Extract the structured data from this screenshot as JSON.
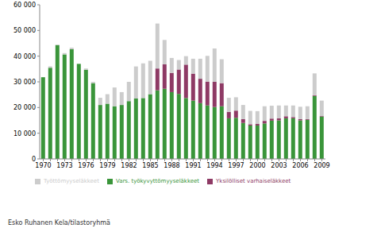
{
  "chart_data": {
    "type": "bar",
    "stacked": true,
    "grid": false,
    "legend": "bottom left",
    "annotation": "Esko Ruhanen Kela/tilastoryhmä",
    "categories": [
      "1970",
      null,
      null,
      "1973",
      null,
      null,
      "1976",
      null,
      null,
      "1979",
      null,
      null,
      "1982",
      null,
      null,
      "1985",
      null,
      null,
      "1988",
      null,
      null,
      "1991",
      null,
      null,
      "1994",
      null,
      null,
      "1997",
      null,
      null,
      "2000",
      null,
      null,
      "2003",
      null,
      null,
      "2006",
      null,
      null,
      "2009"
    ],
    "ylim": [
      0,
      60000
    ],
    "yticks": [
      0,
      {
        "value": 10000,
        "label": "10 000"
      },
      {
        "value": 20000,
        "label": "20 000"
      },
      {
        "value": 30000,
        "label": "30 000"
      },
      {
        "value": 40000,
        "label": "40 000"
      },
      {
        "value": 50000,
        "label": "50 000"
      },
      {
        "value": 60000,
        "label": "60 000"
      }
    ],
    "series": [
      {
        "name": "Vars. työkyvyttömyyseläkkeet",
        "color": "#3a953a",
        "values": [
          31800,
          35500,
          44300,
          40700,
          42700,
          37000,
          34700,
          29500,
          21000,
          21500,
          20500,
          21000,
          22500,
          23500,
          23700,
          25200,
          26700,
          27300,
          26000,
          25300,
          23700,
          22700,
          21700,
          20800,
          20200,
          20500,
          15800,
          16000,
          14000,
          13000,
          13000,
          13800,
          14900,
          15000,
          15800,
          15800,
          15000,
          15200,
          24500,
          16500
        ]
      },
      {
        "name": "Yksilölliset varhaiseläkkeet",
        "color": "#8e3a65",
        "values": [
          0,
          0,
          0,
          0,
          0,
          0,
          0,
          0,
          0,
          0,
          0,
          0,
          0,
          0,
          0,
          0,
          8500,
          9500,
          7500,
          9500,
          13000,
          10500,
          9500,
          9300,
          9800,
          9000,
          2500,
          2800,
          1500,
          500,
          600,
          1000,
          800,
          800,
          800,
          500,
          500,
          300,
          300,
          200
        ]
      },
      {
        "name": "Työttömyyseläkkeet",
        "color": "#cccccc",
        "values": [
          0,
          500,
          200,
          500,
          600,
          0,
          500,
          500,
          2800,
          3700,
          7300,
          5000,
          7500,
          12500,
          13500,
          13000,
          17500,
          9500,
          5800,
          3700,
          3300,
          5800,
          7800,
          10000,
          13000,
          9300,
          5500,
          5200,
          5500,
          5200,
          5000,
          5700,
          5000,
          5000,
          4200,
          4500,
          4800,
          5000,
          8500,
          6000
        ]
      }
    ]
  }
}
